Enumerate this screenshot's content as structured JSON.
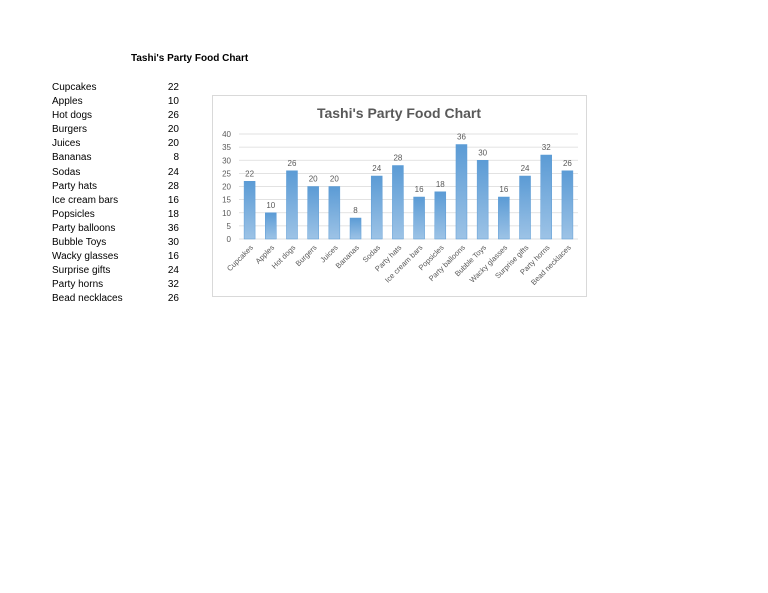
{
  "sheet": {
    "title": "Tashi's Party Food Chart",
    "rows": [
      {
        "label": "Cupcakes",
        "value": "22"
      },
      {
        "label": "Apples",
        "value": "10"
      },
      {
        "label": "Hot dogs",
        "value": "26"
      },
      {
        "label": "Burgers",
        "value": "20"
      },
      {
        "label": "Juices",
        "value": "20"
      },
      {
        "label": "Bananas",
        "value": "8"
      },
      {
        "label": "Sodas",
        "value": "24"
      },
      {
        "label": "Party hats",
        "value": "28"
      },
      {
        "label": "Ice cream bars",
        "value": "16"
      },
      {
        "label": "Popsicles",
        "value": "18"
      },
      {
        "label": "Party balloons",
        "value": "36"
      },
      {
        "label": "Bubble Toys",
        "value": "30"
      },
      {
        "label": "Wacky glasses",
        "value": "16"
      },
      {
        "label": "Surprise gifts",
        "value": "24"
      },
      {
        "label": "Party horns",
        "value": "32"
      },
      {
        "label": "Bead necklaces",
        "value": "26"
      }
    ]
  },
  "chart_data": {
    "type": "bar",
    "title": "Tashi's Party Food Chart",
    "xlabel": "",
    "ylabel": "",
    "categories": [
      "Cupcakes",
      "Apples",
      "Hot dogs",
      "Burgers",
      "Juices",
      "Bananas",
      "Sodas",
      "Party hats",
      "Ice cream bars",
      "Popsicles",
      "Party balloons",
      "Bubble Toys",
      "Wacky glasses",
      "Surprise gifts",
      "Party horns",
      "Bead necklaces"
    ],
    "values": [
      22,
      10,
      26,
      20,
      20,
      8,
      24,
      28,
      16,
      18,
      36,
      30,
      16,
      24,
      32,
      26
    ],
    "ylim": [
      0,
      40
    ],
    "yticks": [
      0,
      5,
      10,
      15,
      20,
      25,
      30,
      35,
      40
    ],
    "grid": true,
    "legend": "none",
    "data_labels": true,
    "colors": {
      "bar_top": "#5b9bd5",
      "bar_bottom": "#9dc3e6",
      "grid": "#d9d9d9",
      "text": "#595959"
    }
  }
}
